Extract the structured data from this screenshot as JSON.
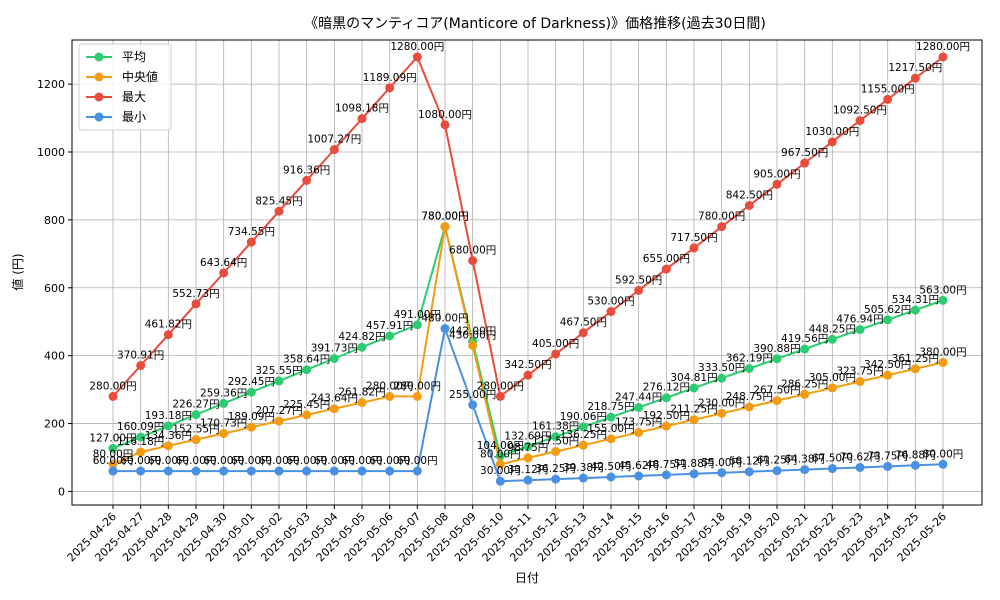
{
  "chart_data": {
    "type": "line",
    "title": "《暗黒のマンティコア(Manticore of Darkness)》価格推移(過去30日間)",
    "xlabel": "日付",
    "ylabel": "値 (円)",
    "ylim": [
      -40,
      1330
    ],
    "yticks": [
      "0",
      "200",
      "400",
      "600",
      "800",
      "1000",
      "1200"
    ],
    "grid": true,
    "legend_position": "top-left",
    "unit_suffix": "円",
    "x": [
      "2025-04-26",
      "2025-04-27",
      "2025-04-28",
      "2025-04-29",
      "2025-04-30",
      "2025-05-01",
      "2025-05-02",
      "2025-05-03",
      "2025-05-04",
      "2025-05-05",
      "2025-05-06",
      "2025-05-07",
      "2025-05-08",
      "2025-05-09",
      "2025-05-10",
      "2025-05-11",
      "2025-05-12",
      "2025-05-13",
      "2025-05-14",
      "2025-05-15",
      "2025-05-16",
      "2025-05-17",
      "2025-05-18",
      "2025-05-19",
      "2025-05-20",
      "2025-05-21",
      "2025-05-22",
      "2025-05-23",
      "2025-05-24",
      "2025-05-25",
      "2025-05-26"
    ],
    "series": [
      {
        "name": "平均",
        "color": "#2ecc71",
        "values": [
          127.0,
          160.09,
          193.18,
          226.27,
          259.36,
          292.45,
          325.55,
          358.64,
          391.73,
          424.82,
          457.91,
          491.0,
          780.0,
          442.0,
          104.0,
          132.69,
          161.38,
          190.06,
          218.75,
          247.44,
          276.12,
          304.81,
          333.5,
          362.19,
          390.88,
          419.56,
          448.25,
          476.94,
          505.62,
          534.31,
          563.0
        ]
      },
      {
        "name": "中央値",
        "color": "#f39c12",
        "values": [
          80.0,
          116.18,
          134.36,
          152.55,
          170.73,
          189.09,
          207.27,
          225.45,
          243.64,
          261.82,
          280.0,
          280.0,
          780.0,
          430.0,
          80.0,
          98.75,
          117.5,
          136.25,
          155.0,
          173.75,
          192.5,
          211.25,
          230.0,
          248.75,
          267.5,
          286.25,
          305.0,
          323.75,
          342.5,
          361.25,
          380.0
        ]
      },
      {
        "name": "最大",
        "color": "#e74c3c",
        "values": [
          280.0,
          370.91,
          461.82,
          552.73,
          643.64,
          734.55,
          825.45,
          916.36,
          1007.27,
          1098.18,
          1189.09,
          1280.0,
          1080.0,
          680.0,
          280.0,
          342.5,
          405.0,
          467.5,
          530.0,
          592.5,
          655.0,
          717.5,
          780.0,
          842.5,
          905.0,
          967.5,
          1030.0,
          1092.5,
          1155.0,
          1217.5,
          1280.0
        ]
      },
      {
        "name": "最小",
        "color": "#4a90e2",
        "values": [
          60.0,
          60.0,
          60.0,
          60.0,
          60.0,
          60.0,
          60.0,
          60.0,
          60.0,
          60.0,
          60.0,
          60.0,
          480.0,
          255.0,
          30.0,
          33.12,
          36.25,
          39.38,
          42.5,
          45.62,
          48.75,
          51.88,
          55.0,
          58.12,
          61.25,
          64.38,
          67.5,
          70.62,
          73.75,
          76.88,
          80.0
        ]
      }
    ]
  }
}
